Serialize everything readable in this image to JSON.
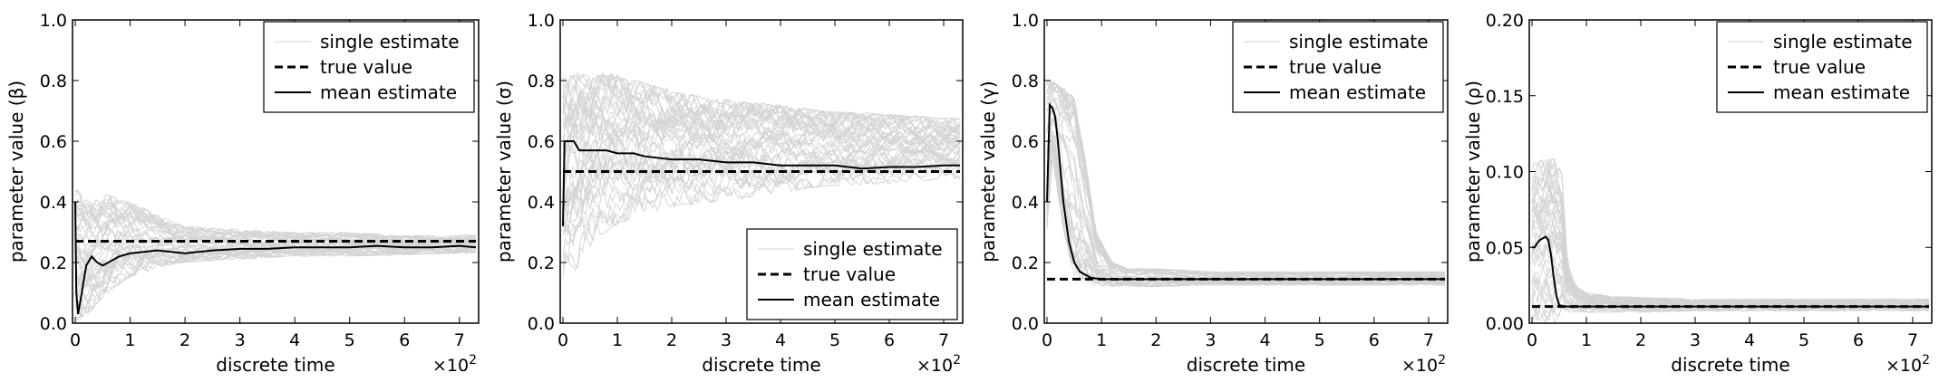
{
  "chart_data": [
    {
      "type": "line",
      "xlabel": "discrete time",
      "ylabel": "parameter value (β)",
      "x_scale_text": "×10",
      "x_scale_exp": "2",
      "xlim": [
        -0.05,
        7.35
      ],
      "ylim": [
        0.0,
        1.0
      ],
      "xticks": [
        0,
        1,
        2,
        3,
        4,
        5,
        6,
        7
      ],
      "yticks": [
        0.0,
        0.2,
        0.4,
        0.6,
        0.8,
        1.0
      ],
      "ytick_labels": [
        "0.0",
        "0.2",
        "0.4",
        "0.6",
        "0.8",
        "1.0"
      ],
      "legend": {
        "position": "top-right",
        "entries": [
          "single estimate",
          "true value",
          "mean estimate"
        ]
      },
      "true_value": 0.27,
      "band": {
        "x": [
          0,
          0.3,
          0.6,
          1,
          1.5,
          2,
          3,
          4,
          5,
          6,
          7,
          7.3
        ],
        "low": [
          0.0,
          0.04,
          0.1,
          0.15,
          0.18,
          0.2,
          0.21,
          0.22,
          0.22,
          0.225,
          0.23,
          0.23
        ],
        "high": [
          0.45,
          0.4,
          0.43,
          0.4,
          0.36,
          0.32,
          0.31,
          0.3,
          0.3,
          0.29,
          0.29,
          0.29
        ]
      },
      "series": [
        {
          "name": "true value",
          "x": [
            0,
            7.3
          ],
          "y": [
            0.27,
            0.27
          ]
        },
        {
          "name": "mean estimate",
          "x": [
            0,
            0.02,
            0.05,
            0.1,
            0.2,
            0.3,
            0.4,
            0.5,
            0.6,
            0.8,
            1.0,
            1.5,
            2.0,
            2.5,
            3.0,
            3.5,
            4.0,
            4.5,
            5.0,
            5.5,
            6.0,
            6.5,
            7.0,
            7.3
          ],
          "y": [
            0.4,
            0.1,
            0.03,
            0.08,
            0.19,
            0.22,
            0.2,
            0.19,
            0.2,
            0.22,
            0.23,
            0.24,
            0.23,
            0.24,
            0.245,
            0.245,
            0.25,
            0.25,
            0.25,
            0.255,
            0.25,
            0.25,
            0.255,
            0.25
          ]
        }
      ]
    },
    {
      "type": "line",
      "xlabel": "discrete time",
      "ylabel": "parameter value (σ)",
      "x_scale_text": "×10",
      "x_scale_exp": "2",
      "xlim": [
        -0.05,
        7.35
      ],
      "ylim": [
        0.0,
        1.0
      ],
      "xticks": [
        0,
        1,
        2,
        3,
        4,
        5,
        6,
        7
      ],
      "yticks": [
        0.0,
        0.2,
        0.4,
        0.6,
        0.8,
        1.0
      ],
      "ytick_labels": [
        "0.0",
        "0.2",
        "0.4",
        "0.6",
        "0.8",
        "1.0"
      ],
      "legend": {
        "position": "bottom-right",
        "entries": [
          "single estimate",
          "true value",
          "mean estimate"
        ]
      },
      "true_value": 0.5,
      "band": {
        "x": [
          0,
          0.2,
          0.5,
          1,
          1.5,
          2,
          3,
          4,
          5,
          6,
          7,
          7.3
        ],
        "low": [
          0.1,
          0.15,
          0.25,
          0.32,
          0.36,
          0.38,
          0.4,
          0.43,
          0.45,
          0.46,
          0.47,
          0.47
        ],
        "high": [
          0.82,
          0.83,
          0.83,
          0.82,
          0.8,
          0.77,
          0.74,
          0.72,
          0.7,
          0.69,
          0.68,
          0.68
        ]
      },
      "series": [
        {
          "name": "true value",
          "x": [
            0,
            7.3
          ],
          "y": [
            0.5,
            0.5
          ]
        },
        {
          "name": "mean estimate",
          "x": [
            0,
            0.03,
            0.1,
            0.2,
            0.3,
            0.5,
            0.8,
            1.0,
            1.3,
            1.5,
            2.0,
            2.5,
            3.0,
            3.5,
            4.0,
            4.5,
            5.0,
            5.5,
            6.0,
            6.5,
            7.0,
            7.3
          ],
          "y": [
            0.32,
            0.6,
            0.6,
            0.6,
            0.57,
            0.57,
            0.57,
            0.56,
            0.56,
            0.55,
            0.54,
            0.54,
            0.53,
            0.53,
            0.52,
            0.52,
            0.52,
            0.51,
            0.515,
            0.515,
            0.52,
            0.52
          ]
        }
      ]
    },
    {
      "type": "line",
      "xlabel": "discrete time",
      "ylabel": "parameter value (γ)",
      "x_scale_text": "×10",
      "x_scale_exp": "2",
      "xlim": [
        -0.05,
        7.35
      ],
      "ylim": [
        0.0,
        1.0
      ],
      "xticks": [
        0,
        1,
        2,
        3,
        4,
        5,
        6,
        7
      ],
      "yticks": [
        0.0,
        0.2,
        0.4,
        0.6,
        0.8,
        1.0
      ],
      "ytick_labels": [
        "0.0",
        "0.2",
        "0.4",
        "0.6",
        "0.8",
        "1.0"
      ],
      "legend": {
        "position": "top-right",
        "entries": [
          "single estimate",
          "true value",
          "mean estimate"
        ]
      },
      "true_value": 0.145,
      "band": {
        "x": [
          0,
          0.1,
          0.3,
          0.5,
          0.7,
          0.9,
          1.2,
          1.5,
          2,
          3,
          4,
          5,
          6,
          7,
          7.3
        ],
        "low": [
          0.3,
          0.55,
          0.3,
          0.15,
          0.13,
          0.12,
          0.12,
          0.12,
          0.12,
          0.125,
          0.125,
          0.125,
          0.125,
          0.125,
          0.125
        ],
        "high": [
          0.8,
          0.8,
          0.78,
          0.75,
          0.55,
          0.3,
          0.2,
          0.18,
          0.18,
          0.17,
          0.17,
          0.17,
          0.17,
          0.17,
          0.17
        ]
      },
      "series": [
        {
          "name": "true value",
          "x": [
            0,
            7.3
          ],
          "y": [
            0.145,
            0.145
          ]
        },
        {
          "name": "mean estimate",
          "x": [
            0,
            0.05,
            0.1,
            0.15,
            0.2,
            0.25,
            0.3,
            0.4,
            0.5,
            0.6,
            0.7,
            0.8,
            1.0,
            1.5,
            2.0,
            3.0,
            4.0,
            5.0,
            6.0,
            7.0,
            7.3
          ],
          "y": [
            0.4,
            0.72,
            0.71,
            0.68,
            0.6,
            0.5,
            0.4,
            0.27,
            0.2,
            0.17,
            0.16,
            0.15,
            0.145,
            0.145,
            0.145,
            0.145,
            0.145,
            0.145,
            0.145,
            0.145,
            0.145
          ]
        }
      ]
    },
    {
      "type": "line",
      "xlabel": "discrete time",
      "ylabel": "parameter value (ρ)",
      "x_scale_text": "×10",
      "x_scale_exp": "2",
      "xlim": [
        -0.05,
        7.35
      ],
      "ylim": [
        0.0,
        0.2
      ],
      "xticks": [
        0,
        1,
        2,
        3,
        4,
        5,
        6,
        7
      ],
      "yticks": [
        0.0,
        0.05,
        0.1,
        0.15,
        0.2
      ],
      "ytick_labels": [
        "0.00",
        "0.05",
        "0.10",
        "0.15",
        "0.20"
      ],
      "legend": {
        "position": "top-right",
        "entries": [
          "single estimate",
          "true value",
          "mean estimate"
        ]
      },
      "true_value": 0.011,
      "band": {
        "x": [
          0,
          0.2,
          0.4,
          0.55,
          0.65,
          0.8,
          1,
          1.5,
          2,
          3,
          4,
          5,
          6,
          7,
          7.3
        ],
        "low": [
          0.0,
          0.0,
          0.0,
          0.005,
          0.007,
          0.007,
          0.007,
          0.007,
          0.007,
          0.008,
          0.008,
          0.008,
          0.008,
          0.008,
          0.008
        ],
        "high": [
          0.105,
          0.11,
          0.11,
          0.1,
          0.04,
          0.025,
          0.02,
          0.018,
          0.017,
          0.016,
          0.016,
          0.016,
          0.016,
          0.016,
          0.016
        ]
      },
      "series": [
        {
          "name": "true value",
          "x": [
            0,
            7.3
          ],
          "y": [
            0.011,
            0.011
          ]
        },
        {
          "name": "mean estimate",
          "x": [
            0,
            0.05,
            0.1,
            0.15,
            0.2,
            0.25,
            0.3,
            0.35,
            0.4,
            0.45,
            0.5,
            0.6,
            0.8,
            1.0,
            1.5,
            2.0,
            3.0,
            4.0,
            5.0,
            6.0,
            7.0,
            7.3
          ],
          "y": [
            0.05,
            0.05,
            0.053,
            0.055,
            0.056,
            0.057,
            0.055,
            0.045,
            0.03,
            0.018,
            0.012,
            0.011,
            0.011,
            0.011,
            0.011,
            0.011,
            0.011,
            0.011,
            0.011,
            0.011,
            0.011,
            0.011
          ]
        }
      ]
    }
  ]
}
